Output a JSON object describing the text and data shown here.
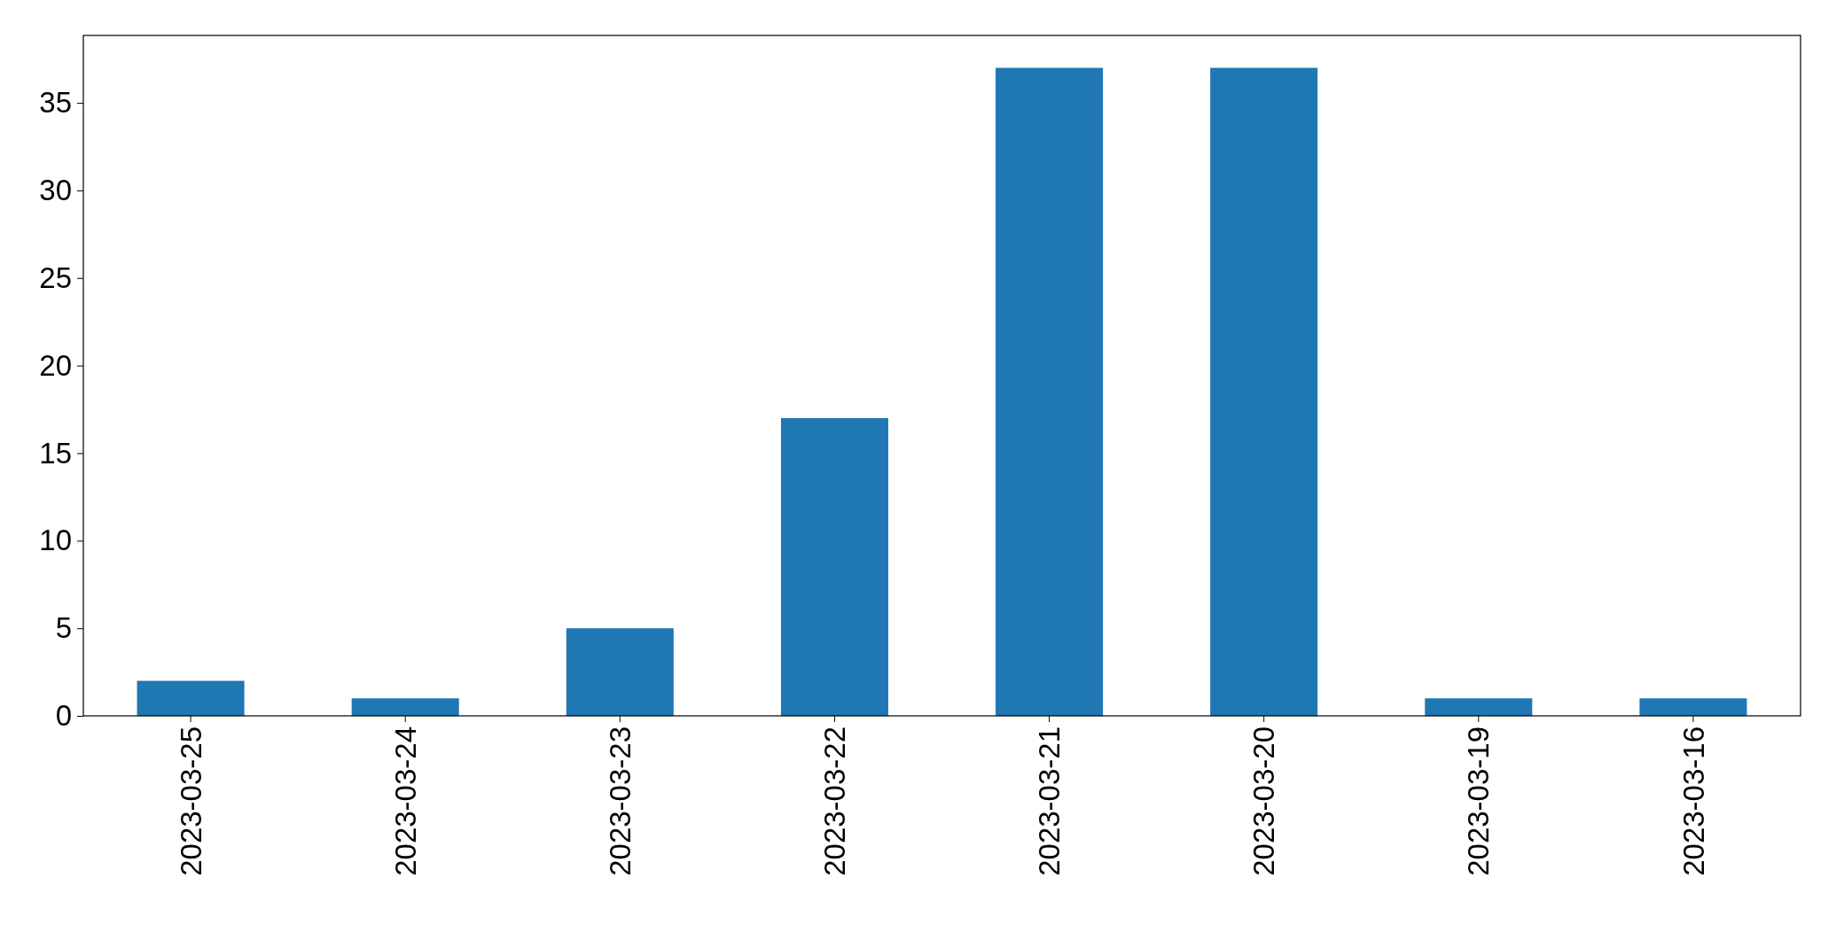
{
  "chart_data": {
    "type": "bar",
    "categories": [
      "2023-03-25",
      "2023-03-24",
      "2023-03-23",
      "2023-03-22",
      "2023-03-21",
      "2023-03-20",
      "2023-03-19",
      "2023-03-16"
    ],
    "values": [
      2,
      1,
      5,
      17,
      37,
      37,
      1,
      1
    ],
    "color": "#1f77b4",
    "ylim": [
      0,
      38.85
    ],
    "yticks": [
      0,
      5,
      10,
      15,
      20,
      25,
      30,
      35
    ]
  }
}
